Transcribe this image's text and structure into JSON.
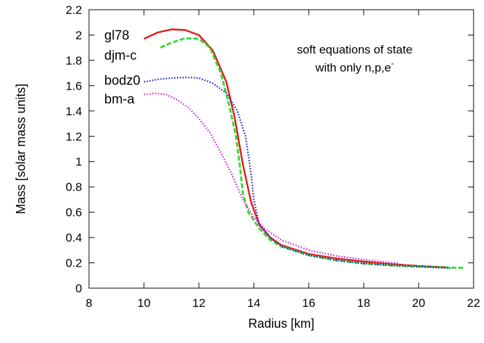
{
  "chart_data": {
    "type": "line",
    "title": "",
    "xlabel": "Radius [km]",
    "ylabel": "Mass [solar mass units]",
    "xlim": [
      8,
      22
    ],
    "ylim": [
      0,
      2.2
    ],
    "xticks": [
      "8",
      "10",
      "12",
      "14",
      "16",
      "18",
      "20",
      "22"
    ],
    "yticks": [
      "0",
      "0.2",
      "0.4",
      "0.6",
      "0.8",
      "1",
      "1.2",
      "1.4",
      "1.6",
      "1.8",
      "2",
      "2.2"
    ],
    "grid": false,
    "annotation": {
      "line1": "soft equations of state",
      "line2": "with only n,p,e",
      "line2_sup": "-"
    },
    "series": [
      {
        "name": "gl78",
        "color": "#e41a1c",
        "style": "solid",
        "points": [
          [
            10.0,
            1.97
          ],
          [
            10.5,
            2.02
          ],
          [
            11.0,
            2.045
          ],
          [
            11.5,
            2.04
          ],
          [
            12.0,
            2.0
          ],
          [
            12.5,
            1.88
          ],
          [
            13.0,
            1.63
          ],
          [
            13.3,
            1.35
          ],
          [
            13.6,
            0.98
          ],
          [
            13.9,
            0.68
          ],
          [
            14.2,
            0.5
          ],
          [
            14.6,
            0.4
          ],
          [
            15.0,
            0.34
          ],
          [
            16.0,
            0.27
          ],
          [
            17.0,
            0.235
          ],
          [
            18.0,
            0.21
          ],
          [
            19.0,
            0.19
          ],
          [
            20.0,
            0.175
          ],
          [
            21.0,
            0.165
          ]
        ]
      },
      {
        "name": "djm-c",
        "color": "#33dd33",
        "style": "dashed",
        "points": [
          [
            10.6,
            1.9
          ],
          [
            11.0,
            1.94
          ],
          [
            11.5,
            1.975
          ],
          [
            12.0,
            1.97
          ],
          [
            12.4,
            1.9
          ],
          [
            12.8,
            1.7
          ],
          [
            13.1,
            1.45
          ],
          [
            13.35,
            1.2
          ],
          [
            13.5,
            0.95
          ],
          [
            13.6,
            0.75
          ],
          [
            13.8,
            0.6
          ],
          [
            14.2,
            0.47
          ],
          [
            14.6,
            0.38
          ],
          [
            15.0,
            0.33
          ],
          [
            16.0,
            0.26
          ],
          [
            17.0,
            0.22
          ],
          [
            18.0,
            0.195
          ],
          [
            19.0,
            0.18
          ],
          [
            20.0,
            0.17
          ],
          [
            21.0,
            0.163
          ],
          [
            21.7,
            0.16
          ]
        ]
      },
      {
        "name": "bodz0",
        "color": "#1f1fcc",
        "style": "dotted",
        "points": [
          [
            10.0,
            1.63
          ],
          [
            10.5,
            1.65
          ],
          [
            11.0,
            1.66
          ],
          [
            11.6,
            1.665
          ],
          [
            12.0,
            1.66
          ],
          [
            12.5,
            1.62
          ],
          [
            13.0,
            1.54
          ],
          [
            13.4,
            1.4
          ],
          [
            13.7,
            1.2
          ],
          [
            13.9,
            0.9
          ],
          [
            14.0,
            0.7
          ],
          [
            14.2,
            0.5
          ],
          [
            14.6,
            0.4
          ],
          [
            15.0,
            0.33
          ],
          [
            16.0,
            0.26
          ],
          [
            17.0,
            0.22
          ],
          [
            18.0,
            0.195
          ],
          [
            19.0,
            0.18
          ],
          [
            20.0,
            0.17
          ],
          [
            21.0,
            0.16
          ],
          [
            21.2,
            0.158
          ]
        ]
      },
      {
        "name": "bm-a",
        "color": "#dd22dd",
        "style": "dotted",
        "points": [
          [
            10.0,
            1.53
          ],
          [
            10.4,
            1.54
          ],
          [
            10.8,
            1.53
          ],
          [
            11.2,
            1.49
          ],
          [
            11.6,
            1.43
          ],
          [
            12.0,
            1.34
          ],
          [
            12.4,
            1.23
          ],
          [
            12.8,
            1.07
          ],
          [
            13.2,
            0.9
          ],
          [
            13.6,
            0.7
          ],
          [
            14.0,
            0.56
          ],
          [
            14.4,
            0.47
          ],
          [
            15.0,
            0.38
          ],
          [
            16.0,
            0.3
          ],
          [
            17.0,
            0.255
          ],
          [
            18.0,
            0.225
          ],
          [
            19.0,
            0.2
          ],
          [
            19.3,
            0.195
          ]
        ]
      }
    ]
  }
}
